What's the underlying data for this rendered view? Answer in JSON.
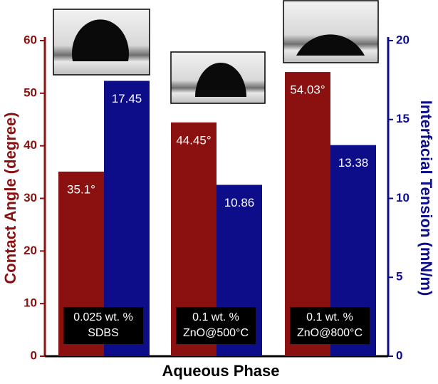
{
  "chart_data": {
    "type": "bar",
    "xlabel": "Aqueous Phase",
    "ylabel": "Contact Angle (degree)",
    "ylabel_color": "#8b1111",
    "y2label": "Interfacial Tension (mN/m)",
    "y2label_color": "#0d0d8a",
    "categories": [
      "0.025 wt. %\nSDBS",
      "0.1 wt. %\nZnO@500°C",
      "0.1 wt. %\nZnO@800°C"
    ],
    "series": [
      {
        "color": "#8b1111",
        "values": [
          35.1,
          44.45,
          54.03
        ],
        "value_labels": [
          "35.1°",
          "44.45°",
          "54.03°"
        ]
      },
      {
        "color": "#0d0d8a",
        "values": [
          17.45,
          10.86,
          13.38
        ],
        "axis": "y2"
      }
    ],
    "ylim": [
      0,
      60
    ],
    "yticks": [
      0,
      10,
      20,
      30,
      40,
      50,
      60
    ],
    "y2lim": [
      0,
      20
    ],
    "y2ticks": [
      0,
      5,
      10,
      15,
      20
    ]
  }
}
